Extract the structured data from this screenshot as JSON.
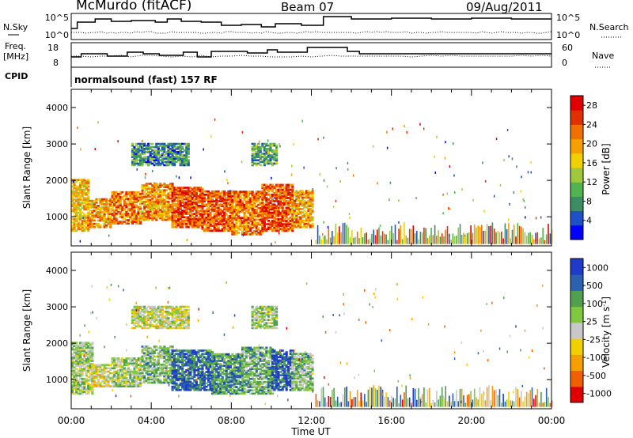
{
  "header": {
    "station": "McMurdo (fitACF)",
    "beam": "Beam 07",
    "date": "09/Aug/2011"
  },
  "noise_panel": {
    "left_label": "N.Sky",
    "right_label": "N.Search",
    "left_ticks": [
      "10^5",
      "10^0"
    ],
    "right_ticks": [
      "10^5",
      "10^0"
    ]
  },
  "freq_panel": {
    "left_label_1": "Freq.",
    "left_label_2": "[MHz]",
    "right_label": "Nave",
    "left_ticks": [
      "18",
      "8"
    ],
    "right_ticks": [
      "60",
      "0"
    ]
  },
  "cpid": {
    "label": "CPID",
    "text": "normalsound (fast) 157 RF"
  },
  "time_axis": {
    "title": "Time UT",
    "ticks": [
      "00:00",
      "04:00",
      "08:00",
      "12:00",
      "16:00",
      "20:00",
      "00:00"
    ]
  },
  "colors": {
    "power_scale": [
      "#0000ff",
      "#1e50c8",
      "#3c8c64",
      "#50b450",
      "#a0c83c",
      "#f0d000",
      "#f5a000",
      "#f07000",
      "#e03000",
      "#e00000"
    ],
    "velocity_scale": [
      "#e00000",
      "#f06000",
      "#f5a000",
      "#f0d000",
      "#c8c8c8",
      "#80c840",
      "#50a050",
      "#2c60b0",
      "#1e3cc8"
    ]
  },
  "chart_data": [
    {
      "type": "heatmap",
      "name": "power",
      "ylabel": "Slant Range [km]",
      "yticks": [
        "1000",
        "2000",
        "3000",
        "4000"
      ],
      "ylim": [
        200,
        4500
      ],
      "xlim_hours": [
        0,
        24
      ],
      "colorbar_label": "Power [dB]",
      "colorbar_ticks": [
        "4",
        "8",
        "12",
        "16",
        "20",
        "24",
        "28"
      ],
      "colorbar_range": [
        0,
        30
      ],
      "regions": [
        {
          "t0": 0.0,
          "t1": 0.8,
          "r0": 600,
          "r1": 2000,
          "value": 18
        },
        {
          "t0": 0.8,
          "t1": 2.0,
          "r0": 700,
          "r1": 1500,
          "value": 20
        },
        {
          "t0": 2.0,
          "t1": 3.5,
          "r0": 800,
          "r1": 1700,
          "value": 22
        },
        {
          "t0": 3.5,
          "t1": 5.0,
          "r0": 900,
          "r1": 1900,
          "value": 20
        },
        {
          "t0": 5.0,
          "t1": 6.5,
          "r0": 700,
          "r1": 1800,
          "value": 24
        },
        {
          "t0": 6.5,
          "t1": 8.0,
          "r0": 600,
          "r1": 1700,
          "value": 24
        },
        {
          "t0": 8.0,
          "t1": 9.5,
          "r0": 500,
          "r1": 1700,
          "value": 22
        },
        {
          "t0": 9.5,
          "t1": 11.0,
          "r0": 600,
          "r1": 1900,
          "value": 24
        },
        {
          "t0": 11.0,
          "t1": 12.0,
          "r0": 700,
          "r1": 1700,
          "value": 20
        },
        {
          "t0": 3.0,
          "t1": 5.8,
          "r0": 2400,
          "r1": 3000,
          "value": 8
        },
        {
          "t0": 9.0,
          "t1": 10.2,
          "r0": 2400,
          "r1": 3000,
          "value": 10
        }
      ]
    },
    {
      "type": "heatmap",
      "name": "velocity",
      "ylabel": "Slant Range [km]",
      "yticks": [
        "1000",
        "2000",
        "3000",
        "4000"
      ],
      "ylim": [
        200,
        4500
      ],
      "xlim_hours": [
        0,
        24
      ],
      "colorbar_label": "Velocity [m s^-1]",
      "colorbar_ticks": [
        "1000",
        "500",
        "100",
        "25",
        "-25",
        "-100",
        "-500",
        "-1000"
      ],
      "colorbar_range": [
        -1200,
        1200
      ],
      "regions": [
        {
          "t0": 0.0,
          "t1": 1.0,
          "r0": 600,
          "r1": 2000,
          "value": 150
        },
        {
          "t0": 1.0,
          "t1": 2.0,
          "r0": 800,
          "r1": 1400,
          "value": -150
        },
        {
          "t0": 2.0,
          "t1": 3.5,
          "r0": 800,
          "r1": 1600,
          "value": 200
        },
        {
          "t0": 3.5,
          "t1": 5.0,
          "r0": 900,
          "r1": 1900,
          "value": 300
        },
        {
          "t0": 5.0,
          "t1": 7.0,
          "r0": 700,
          "r1": 1800,
          "value": 800
        },
        {
          "t0": 7.0,
          "t1": 8.5,
          "r0": 600,
          "r1": 1700,
          "value": 600
        },
        {
          "t0": 8.5,
          "t1": 10.0,
          "r0": 600,
          "r1": 1900,
          "value": 400
        },
        {
          "t0": 10.0,
          "t1": 11.0,
          "r0": 700,
          "r1": 1800,
          "value": 900
        },
        {
          "t0": 11.0,
          "t1": 12.0,
          "r0": 700,
          "r1": 1700,
          "value": 300
        },
        {
          "t0": 3.0,
          "t1": 5.8,
          "r0": 2400,
          "r1": 3000,
          "value": 0
        },
        {
          "t0": 9.0,
          "t1": 10.2,
          "r0": 2400,
          "r1": 3000,
          "value": 200
        }
      ]
    }
  ]
}
